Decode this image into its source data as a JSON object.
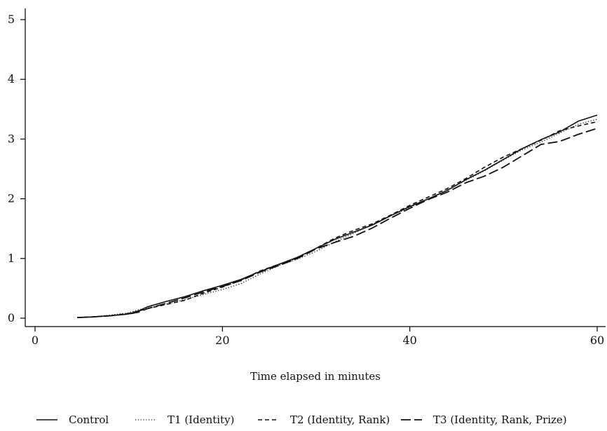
{
  "chart_data": {
    "type": "line",
    "title": "",
    "xlabel": "Time elapsed in minutes",
    "ylabel": "",
    "xlim": [
      0,
      60
    ],
    "ylim": [
      0,
      5
    ],
    "xticks": [
      0,
      20,
      40,
      60
    ],
    "yticks": [
      0,
      1,
      2,
      3,
      4,
      5
    ],
    "grid": false,
    "legend_position": "bottom",
    "series": [
      {
        "name": "Control",
        "style": "solid",
        "x": [
          4.5,
          6,
          8,
          10,
          11,
          12,
          14,
          16,
          18,
          20,
          22,
          24,
          26,
          28,
          30,
          32,
          34,
          36,
          38,
          40,
          42,
          44,
          46,
          48,
          50,
          52,
          54,
          56,
          58,
          60
        ],
        "y": [
          0.01,
          0.02,
          0.04,
          0.07,
          0.12,
          0.19,
          0.28,
          0.36,
          0.46,
          0.55,
          0.65,
          0.78,
          0.9,
          1.02,
          1.17,
          1.32,
          1.44,
          1.56,
          1.72,
          1.87,
          2.0,
          2.14,
          2.32,
          2.48,
          2.66,
          2.84,
          2.99,
          3.12,
          3.3,
          3.4
        ]
      },
      {
        "name": "T1 (Identity)",
        "style": "dotted",
        "x": [
          4.5,
          6,
          8,
          10,
          11,
          12,
          14,
          16,
          18,
          20,
          22,
          24,
          26,
          28,
          30,
          32,
          34,
          36,
          38,
          40,
          42,
          44,
          46,
          48,
          50,
          52,
          54,
          56,
          58,
          60
        ],
        "y": [
          0.01,
          0.02,
          0.05,
          0.09,
          0.14,
          0.17,
          0.24,
          0.31,
          0.4,
          0.48,
          0.58,
          0.74,
          0.88,
          0.99,
          1.12,
          1.28,
          1.42,
          1.57,
          1.72,
          1.85,
          2.0,
          2.15,
          2.31,
          2.47,
          2.65,
          2.82,
          2.95,
          3.1,
          3.25,
          3.33
        ]
      },
      {
        "name": "T2 (Identity, Rank)",
        "style": "dashed",
        "x": [
          4.5,
          6,
          8,
          10,
          11,
          12,
          14,
          16,
          18,
          20,
          22,
          24,
          26,
          28,
          30,
          32,
          34,
          36,
          38,
          40,
          42,
          44,
          46,
          48,
          50,
          52,
          54,
          56,
          58,
          60
        ],
        "y": [
          0.01,
          0.02,
          0.04,
          0.08,
          0.12,
          0.16,
          0.23,
          0.3,
          0.42,
          0.52,
          0.64,
          0.79,
          0.9,
          1.01,
          1.17,
          1.34,
          1.47,
          1.58,
          1.73,
          1.89,
          2.03,
          2.17,
          2.34,
          2.53,
          2.7,
          2.84,
          2.98,
          3.14,
          3.22,
          3.29
        ]
      },
      {
        "name": "T3 (Identity, Rank, Prize)",
        "style": "longdash",
        "x": [
          4.5,
          6,
          8,
          10,
          11,
          12,
          14,
          16,
          18,
          20,
          22,
          24,
          26,
          28,
          30,
          32,
          34,
          36,
          38,
          40,
          42,
          44,
          46,
          48,
          50,
          52,
          54,
          56,
          58,
          60
        ],
        "y": [
          0.01,
          0.02,
          0.04,
          0.07,
          0.1,
          0.16,
          0.25,
          0.34,
          0.44,
          0.53,
          0.63,
          0.77,
          0.88,
          1.0,
          1.16,
          1.27,
          1.37,
          1.51,
          1.68,
          1.84,
          1.99,
          2.11,
          2.27,
          2.38,
          2.53,
          2.72,
          2.91,
          2.96,
          3.08,
          3.18
        ]
      }
    ]
  }
}
